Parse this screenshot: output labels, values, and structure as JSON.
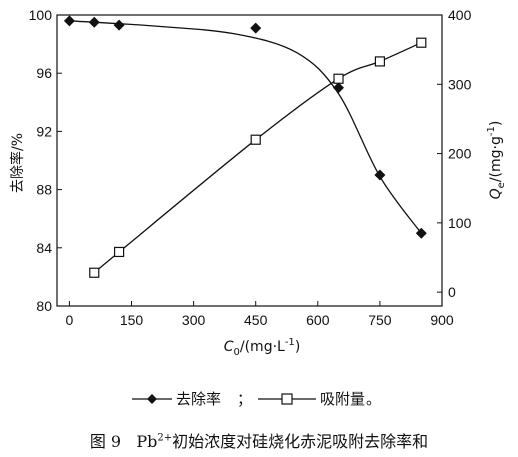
{
  "chart_data": {
    "type": "line",
    "x_label": {
      "main": "C",
      "sub": "0",
      "unit": "/(mg·L",
      "sup": "-1",
      "tail": ")"
    },
    "y_left_label": "去除率/%",
    "y_right_label": {
      "main": "Q",
      "sub": "e",
      "unit": "/(mg·g",
      "sup": "-1",
      "tail": ")"
    },
    "x_ticks": [
      0,
      150,
      300,
      450,
      600,
      750,
      900
    ],
    "y_left_ticks": [
      80,
      84,
      88,
      92,
      96,
      100
    ],
    "y_right_ticks": [
      0,
      100,
      200,
      300,
      400
    ],
    "xlim": [
      -30,
      900
    ],
    "ylim_left": [
      80,
      100
    ],
    "ylim_right": [
      -20,
      400
    ],
    "grid": false,
    "series": [
      {
        "name": "去除率",
        "axis": "left",
        "marker": "diamond-filled",
        "points": [
          [
            0,
            99.6
          ],
          [
            60,
            99.5
          ],
          [
            120,
            99.3
          ],
          [
            450,
            99.1
          ],
          [
            650,
            95.0
          ],
          [
            750,
            89.0
          ],
          [
            850,
            85.0
          ]
        ]
      },
      {
        "name": "吸附量",
        "axis": "right",
        "marker": "square-open",
        "points": [
          [
            60,
            28
          ],
          [
            120,
            58
          ],
          [
            450,
            220
          ],
          [
            650,
            308
          ],
          [
            750,
            333
          ],
          [
            850,
            360
          ]
        ]
      }
    ],
    "legend": {
      "separator": "；",
      "end": "。",
      "placement": "bottom-center"
    }
  },
  "caption": {
    "prefix": "图 9",
    "element": "Pb",
    "charge": "2+",
    "rest": "初始浓度对硅烧化赤泥吸附去除率和"
  }
}
